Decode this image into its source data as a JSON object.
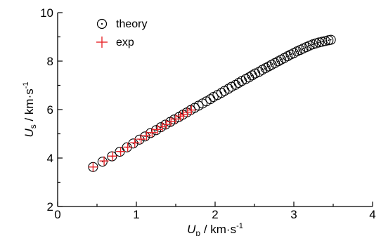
{
  "chart_data": {
    "type": "scatter",
    "title": "",
    "xlabel_main": "U",
    "xlabel_sub": "p",
    "xlabel_unit": " / km·s",
    "xlabel_exp": "-1",
    "ylabel_main": "U",
    "ylabel_sub": "s",
    "ylabel_unit": " / km·s",
    "ylabel_exp": "-1",
    "xlim": [
      0,
      4
    ],
    "ylim": [
      2,
      10
    ],
    "xticks": [
      0,
      1,
      2,
      3,
      4
    ],
    "yticks": [
      2,
      4,
      6,
      8,
      10
    ],
    "grid": false,
    "legend_position": "top-left",
    "series": [
      {
        "name": "theory",
        "marker": "circle-dot",
        "color": "#000000",
        "x": [
          0.45,
          0.57,
          0.69,
          0.79,
          0.88,
          0.96,
          1.04,
          1.11,
          1.18,
          1.25,
          1.31,
          1.37,
          1.43,
          1.48,
          1.54,
          1.59,
          1.64,
          1.69,
          1.74,
          1.79,
          1.84,
          1.89,
          1.94,
          1.98,
          2.03,
          2.08,
          2.12,
          2.17,
          2.21,
          2.26,
          2.3,
          2.34,
          2.39,
          2.43,
          2.47,
          2.51,
          2.56,
          2.6,
          2.64,
          2.68,
          2.72,
          2.76,
          2.8,
          2.84,
          2.88,
          2.92,
          2.96,
          3.0,
          3.04,
          3.08,
          3.12,
          3.16,
          3.2,
          3.24,
          3.28,
          3.32,
          3.36,
          3.4,
          3.44,
          3.47
        ],
        "y": [
          3.63,
          3.85,
          4.07,
          4.26,
          4.44,
          4.6,
          4.76,
          4.89,
          5.03,
          5.15,
          5.27,
          5.38,
          5.49,
          5.59,
          5.69,
          5.79,
          5.88,
          5.98,
          6.07,
          6.16,
          6.25,
          6.34,
          6.43,
          6.52,
          6.6,
          6.69,
          6.77,
          6.86,
          6.94,
          7.02,
          7.1,
          7.18,
          7.26,
          7.33,
          7.41,
          7.49,
          7.56,
          7.64,
          7.71,
          7.78,
          7.85,
          7.92,
          7.99,
          8.06,
          8.13,
          8.2,
          8.27,
          8.33,
          8.4,
          8.46,
          8.52,
          8.58,
          8.64,
          8.69,
          8.73,
          8.77,
          8.8,
          8.83,
          8.86,
          8.88
        ]
      },
      {
        "name": "exp",
        "marker": "plus",
        "color": "#e8262a",
        "x": [
          0.45,
          0.59,
          0.7,
          0.8,
          0.89,
          0.98,
          1.06,
          1.13,
          1.2,
          1.27,
          1.33,
          1.38,
          1.44,
          1.5,
          1.56,
          1.6,
          1.65,
          1.7
        ],
        "y": [
          3.63,
          3.88,
          4.08,
          4.27,
          4.45,
          4.63,
          4.78,
          4.92,
          5.05,
          5.18,
          5.29,
          5.39,
          5.5,
          5.61,
          5.73,
          5.8,
          5.89,
          5.98
        ]
      }
    ]
  }
}
